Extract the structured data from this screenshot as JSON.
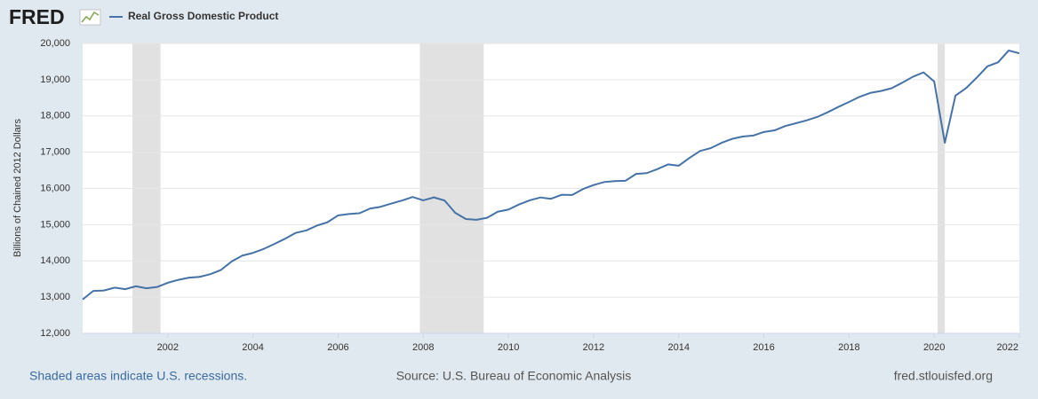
{
  "chart_data": {
    "type": "line",
    "logo": "FRED",
    "ylabel": "Billions of Chained 2012 Dollars",
    "footer_left": "Shaded areas indicate U.S. recessions.",
    "source": "Source: U.S. Bureau of Economic Analysis",
    "site": "fred.stlouisfed.org",
    "xlim": [
      2000,
      2022
    ],
    "ylim": [
      12000,
      20000
    ],
    "xticks": [
      2002,
      2004,
      2006,
      2008,
      2010,
      2012,
      2014,
      2016,
      2018,
      2020,
      2022
    ],
    "yticks": [
      {
        "value": 12000,
        "label": "12,000"
      },
      {
        "value": 13000,
        "label": "13,000"
      },
      {
        "value": 14000,
        "label": "14,000"
      },
      {
        "value": 15000,
        "label": "15,000"
      },
      {
        "value": 16000,
        "label": "16,000"
      },
      {
        "value": 17000,
        "label": "17,000"
      },
      {
        "value": 18000,
        "label": "18,000"
      },
      {
        "value": 19000,
        "label": "19,000"
      },
      {
        "value": 20000,
        "label": "20,000"
      }
    ],
    "grid": true,
    "recessions": [
      [
        2001.17,
        2001.83
      ],
      [
        2007.92,
        2009.42
      ],
      [
        2020.08,
        2020.25
      ]
    ],
    "x": [
      2000,
      2000.25,
      2000.5,
      2000.75,
      2001,
      2001.25,
      2001.5,
      2001.75,
      2002,
      2002.25,
      2002.5,
      2002.75,
      2003,
      2003.25,
      2003.5,
      2003.75,
      2004,
      2004.25,
      2004.5,
      2004.75,
      2005,
      2005.25,
      2005.5,
      2005.75,
      2006,
      2006.25,
      2006.5,
      2006.75,
      2007,
      2007.25,
      2007.5,
      2007.75,
      2008,
      2008.25,
      2008.5,
      2008.75,
      2009,
      2009.25,
      2009.5,
      2009.75,
      2010,
      2010.25,
      2010.5,
      2010.75,
      2011,
      2011.25,
      2011.5,
      2011.75,
      2012,
      2012.25,
      2012.5,
      2012.75,
      2013,
      2013.25,
      2013.5,
      2013.75,
      2014,
      2014.25,
      2014.5,
      2014.75,
      2015,
      2015.25,
      2015.5,
      2015.75,
      2016,
      2016.25,
      2016.5,
      2016.75,
      2017,
      2017.25,
      2017.5,
      2017.75,
      2018,
      2018.25,
      2018.5,
      2018.75,
      2019,
      2019.25,
      2019.5,
      2019.75,
      2020,
      2020.25,
      2020.5,
      2020.75,
      2021,
      2021.25,
      2021.5,
      2021.75,
      2022
    ],
    "series": [
      {
        "name": "Real Gross Domestic Product",
        "color": "#4572a7",
        "values": [
          12935,
          13171,
          13183,
          13262,
          13220,
          13300,
          13245,
          13281,
          13397,
          13478,
          13538,
          13559,
          13635,
          13752,
          13985,
          14146,
          14221,
          14330,
          14465,
          14610,
          14772,
          14839,
          14973,
          15067,
          15255,
          15293,
          15315,
          15444,
          15493,
          15582,
          15666,
          15762,
          15671,
          15752,
          15667,
          15328,
          15156,
          15134,
          15190,
          15357,
          15416,
          15558,
          15672,
          15751,
          15713,
          15825,
          15821,
          15982,
          16094,
          16176,
          16203,
          16212,
          16401,
          16422,
          16533,
          16663,
          16626,
          16840,
          17032,
          17111,
          17254,
          17366,
          17432,
          17458,
          17557,
          17602,
          17720,
          17798,
          17877,
          17970,
          18102,
          18249,
          18385,
          18529,
          18635,
          18688,
          18765,
          18916,
          19081,
          19202,
          18952,
          17258,
          18561,
          18768,
          19056,
          19368,
          19479,
          19806,
          19727
        ]
      }
    ]
  }
}
